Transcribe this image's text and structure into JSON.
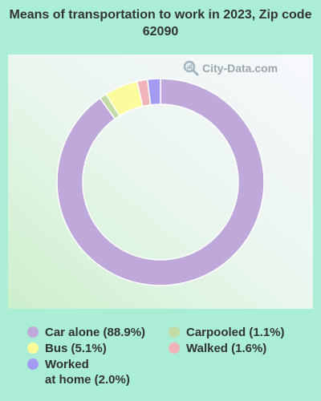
{
  "title": "Means of transportation to work in 2023, Zip code 62090",
  "watermark": "City-Data.com",
  "chart_data": {
    "type": "pie",
    "donut": true,
    "slices": [
      {
        "label": "Car alone",
        "value": 88.9,
        "display": "Car alone (88.9%)",
        "color": "#bfa9da"
      },
      {
        "label": "Carpooled",
        "value": 1.1,
        "display": "Carpooled (1.1%)",
        "color": "#c3dca6"
      },
      {
        "label": "Bus",
        "value": 5.1,
        "display": "Bus (5.1%)",
        "color": "#fbfb9c"
      },
      {
        "label": "Walked",
        "value": 1.6,
        "display": "Walked (1.6%)",
        "color": "#f0b3b8"
      },
      {
        "label": "Worked at home",
        "value": 2.0,
        "display": "Worked\nat home (2.0%)",
        "color": "#a39bf1"
      }
    ],
    "legend_placement": "bottom"
  }
}
